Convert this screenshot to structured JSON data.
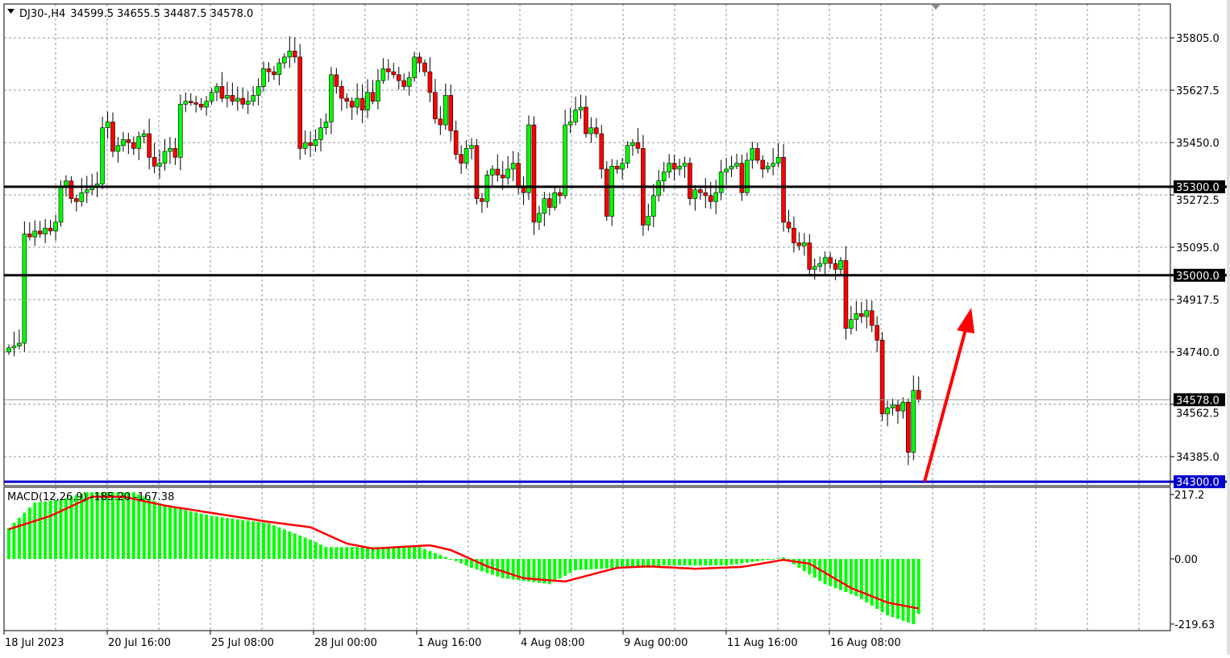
{
  "header": {
    "symbol": "DJ30-,H4",
    "open": "34599.5",
    "high": "34655.5",
    "low": "34487.5",
    "close": "34578.0"
  },
  "chart_data": [
    {
      "type": "candlestick",
      "title": "DJ30-,H4",
      "ylim": [
        34300,
        35860
      ],
      "price_ticks": [
        "35805.0",
        "35627.5",
        "35450.0",
        "35272.5",
        "35095.0",
        "34917.5",
        "34740.0",
        "34562.5",
        "34385.0"
      ],
      "time_labels": [
        "18 Jul 2023",
        "20 Jul 16:00",
        "25 Jul 08:00",
        "28 Jul 00:00",
        "1 Aug 16:00",
        "4 Aug 08:00",
        "9 Aug 00:00",
        "11 Aug 16:00",
        "16 Aug 08:00"
      ],
      "first_open": 34740,
      "closes": [
        34754,
        34760,
        34770,
        35140,
        35130,
        35150,
        35140,
        35160,
        35150,
        35180,
        35300,
        35320,
        35260,
        35250,
        35280,
        35290,
        35300,
        35310,
        35500,
        35520,
        35420,
        35440,
        35460,
        35450,
        35430,
        35470,
        35480,
        35400,
        35370,
        35380,
        35420,
        35430,
        35400,
        35580,
        35590,
        35585,
        35580,
        35570,
        35590,
        35620,
        35640,
        35600,
        35610,
        35590,
        35600,
        35580,
        35590,
        35610,
        35640,
        35700,
        35690,
        35680,
        35720,
        35740,
        35760,
        35740,
        35430,
        35450,
        35440,
        35460,
        35500,
        35520,
        35680,
        35640,
        35600,
        35590,
        35570,
        35600,
        35560,
        35620,
        35590,
        35660,
        35700,
        35690,
        35680,
        35660,
        35640,
        35670,
        35740,
        35720,
        35690,
        35620,
        35530,
        35510,
        35610,
        35490,
        35410,
        35380,
        35430,
        35440,
        35260,
        35250,
        35340,
        35360,
        35340,
        35330,
        35360,
        35380,
        35300,
        35280,
        35510,
        35180,
        35210,
        35260,
        35230,
        35280,
        35270,
        35510,
        35520,
        35560,
        35570,
        35480,
        35500,
        35480,
        35360,
        35200,
        35370,
        35360,
        35380,
        35440,
        35450,
        35430,
        35170,
        35200,
        35270,
        35320,
        35350,
        35380,
        35360,
        35370,
        35380,
        35260,
        35290,
        35280,
        35270,
        35250,
        35280,
        35350,
        35360,
        35370,
        35380,
        35280,
        35390,
        35430,
        35390,
        35360,
        35370,
        35380,
        35400,
        35180,
        35160,
        35110,
        35100,
        35110,
        35020,
        35030,
        35040,
        35060,
        35040,
        35020,
        35050,
        34820,
        34850,
        34870,
        34860,
        34880,
        34830,
        34780,
        34530,
        34550,
        34560,
        34540,
        34570,
        34400,
        34610,
        34578
      ],
      "horizontal_levels": [
        {
          "price": "35300.0",
          "color": "#000000"
        },
        {
          "price": "35000.0",
          "color": "#000000"
        },
        {
          "price": "34300.0",
          "color": "#0000cc"
        }
      ],
      "current_price": "34578.0",
      "bull_color": "#00ff00",
      "bear_color": "#ff0000",
      "arrow": {
        "color": "#ff0000",
        "from_price": 34300,
        "to_price": 34890,
        "direction": "up"
      }
    },
    {
      "type": "bar+line",
      "label": "MACD(12,26,9) -185.20 -167.38",
      "ylim": [
        -219.63,
        217.2
      ],
      "ticks": [
        "217.2",
        "0.00",
        "-219.63"
      ],
      "histogram_keypoints": [
        [
          0,
          105
        ],
        [
          5,
          190
        ],
        [
          10,
          200
        ],
        [
          15,
          225
        ],
        [
          24,
          225
        ],
        [
          30,
          180
        ],
        [
          39,
          145
        ],
        [
          50,
          120
        ],
        [
          58,
          65
        ],
        [
          61,
          40
        ],
        [
          79,
          40
        ],
        [
          85,
          0
        ],
        [
          89,
          -30
        ],
        [
          95,
          -65
        ],
        [
          104,
          -85
        ],
        [
          109,
          -38
        ],
        [
          117,
          -30
        ],
        [
          123,
          -30
        ],
        [
          126,
          -22
        ],
        [
          138,
          -22
        ],
        [
          144,
          -8
        ],
        [
          149,
          5
        ],
        [
          152,
          -30
        ],
        [
          157,
          -85
        ],
        [
          163,
          -125
        ],
        [
          169,
          -190
        ],
        [
          174,
          -220
        ],
        [
          175,
          -185
        ]
      ],
      "signal_keypoints": [
        [
          0,
          100
        ],
        [
          8,
          145
        ],
        [
          16,
          210
        ],
        [
          22,
          210
        ],
        [
          30,
          180
        ],
        [
          39,
          155
        ],
        [
          50,
          125
        ],
        [
          58,
          107
        ],
        [
          65,
          52
        ],
        [
          70,
          35
        ],
        [
          81,
          46
        ],
        [
          85,
          30
        ],
        [
          92,
          -25
        ],
        [
          99,
          -65
        ],
        [
          107,
          -76
        ],
        [
          117,
          -30
        ],
        [
          123,
          -25
        ],
        [
          132,
          -33
        ],
        [
          141,
          -27
        ],
        [
          149,
          -3
        ],
        [
          154,
          -16
        ],
        [
          162,
          -98
        ],
        [
          169,
          -147
        ],
        [
          175,
          -167
        ]
      ],
      "histogram_color": "#00ff00",
      "signal_color": "#ff0000"
    }
  ]
}
